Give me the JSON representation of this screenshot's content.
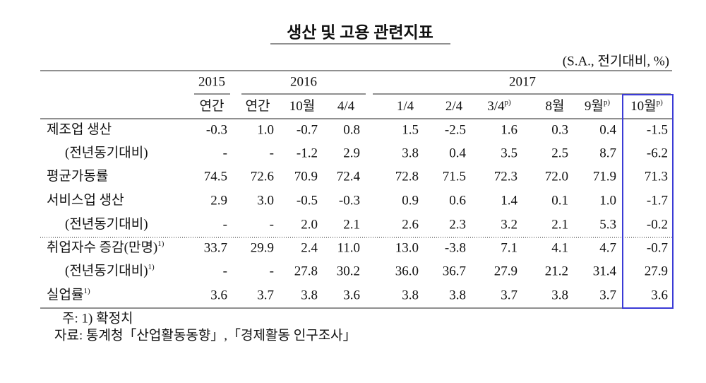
{
  "title": "생산 및 고용 관련지표",
  "unit": "(S.A., 전기대비, %)",
  "table": {
    "years": [
      "2015",
      "2016",
      "2017"
    ],
    "columns": [
      {
        "label": "연간"
      },
      {
        "label": "연간"
      },
      {
        "label": "10월"
      },
      {
        "label": "4/4"
      },
      {
        "label": "1/4"
      },
      {
        "label": "2/4"
      },
      {
        "label": "3/4",
        "sup": "p)"
      },
      {
        "label": "8월"
      },
      {
        "label": "9월",
        "sup": "p)"
      },
      {
        "label": "10월",
        "sup": "p)"
      }
    ],
    "rows": [
      {
        "label": "제조업 생산",
        "cells": [
          "-0.3",
          "1.0",
          "-0.7",
          "0.8",
          "1.5",
          "-2.5",
          "1.6",
          "0.3",
          "0.4",
          "-1.5"
        ]
      },
      {
        "label": "(전년동기대비)",
        "cells": [
          "-",
          "-",
          "-1.2",
          "2.9",
          "3.8",
          "0.4",
          "3.5",
          "2.5",
          "8.7",
          "-6.2"
        ]
      },
      {
        "label": "평균가동률",
        "cells": [
          "74.5",
          "72.6",
          "70.9",
          "72.4",
          "72.8",
          "71.5",
          "72.3",
          "72.0",
          "71.9",
          "71.3"
        ]
      },
      {
        "label": "서비스업 생산",
        "cells": [
          "2.9",
          "3.0",
          "-0.5",
          "-0.3",
          "0.9",
          "0.6",
          "1.4",
          "0.1",
          "1.0",
          "-1.7"
        ]
      },
      {
        "label": "(전년동기대비)",
        "cells": [
          "-",
          "-",
          "2.0",
          "2.1",
          "2.6",
          "2.3",
          "3.2",
          "2.1",
          "5.3",
          "-0.2"
        ]
      },
      {
        "label": "취업자수 증감(만명)",
        "sup": "1)",
        "cells": [
          "33.7",
          "29.9",
          "2.4",
          "11.0",
          "13.0",
          "-3.8",
          "7.1",
          "4.1",
          "4.7",
          "-0.7"
        ]
      },
      {
        "label": "(전년동기대비)",
        "sup": "1)",
        "cells": [
          "-",
          "-",
          "27.8",
          "30.2",
          "36.0",
          "36.7",
          "27.9",
          "21.2",
          "31.4",
          "27.9"
        ]
      },
      {
        "label": "실업률",
        "sup": "1)",
        "cells": [
          "3.6",
          "3.7",
          "3.8",
          "3.6",
          "3.8",
          "3.8",
          "3.7",
          "3.8",
          "3.7",
          "3.6"
        ]
      }
    ]
  },
  "notes": [
    "주: 1) 확정치",
    "자료: 통계청「산업활동동향」,「경제활동 인구조사」"
  ]
}
